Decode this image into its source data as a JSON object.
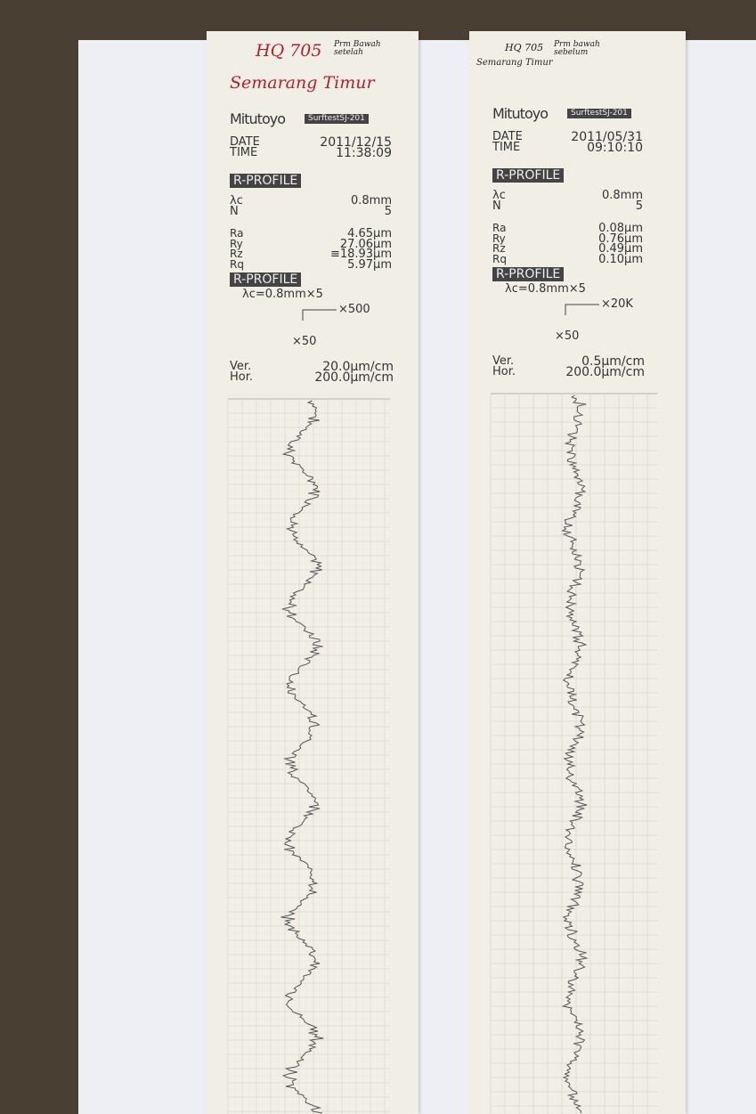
{
  "strips": [
    {
      "handwriting": {
        "title": "HQ 705",
        "note": "Prm Bawah setelah",
        "location": "Semarang Timur"
      },
      "brand": "Mitutoyo",
      "model": "SurftestSJ-201",
      "date_label": "DATE",
      "date": "2011/12/15",
      "time_label": "TIME",
      "time": "11:38:09",
      "section_title": "R-PROFILE",
      "cutoff_label": "λc",
      "cutoff": "0.8mm",
      "n_label": "N",
      "n": "5",
      "params": [
        [
          "Ra",
          "4.65μm"
        ],
        [
          "Ry",
          "27.06μm"
        ],
        [
          "Rz",
          "≡18.93μm"
        ],
        [
          "Rq",
          "5.97μm"
        ]
      ],
      "profile_title": "R-PROFILE",
      "profile_setting": "λc=0.8mm×5",
      "vertical_mag": "×500",
      "horizontal_mag": "×50",
      "scales": [
        [
          "Ver.",
          "20.0μm/cm"
        ],
        [
          "Hor.",
          "200.0μm/cm"
        ]
      ]
    },
    {
      "handwriting": {
        "title": "HQ 705",
        "note": "Prm bawah sebelum",
        "location": "Semarang Timur"
      },
      "brand": "Mitutoyo",
      "model": "SurftestSJ-201",
      "date_label": "DATE",
      "date": "2011/05/31",
      "time_label": "TIME",
      "time": "09:10:10",
      "section_title": "R-PROFILE",
      "cutoff_label": "λc",
      "cutoff": "0.8mm",
      "n_label": "N",
      "n": "5",
      "params": [
        [
          "Ra",
          "0.08μm"
        ],
        [
          "Ry",
          "0.76μm"
        ],
        [
          "Rz",
          "0.49μm"
        ],
        [
          "Rq",
          "0.10μm"
        ]
      ],
      "profile_title": "R-PROFILE",
      "profile_setting": "λc=0.8mm×5",
      "vertical_mag": "×20K",
      "horizontal_mag": "×50",
      "scales": [
        [
          "Ver.",
          "0.5μm/cm"
        ],
        [
          "Hor.",
          "200.0μm/cm"
        ]
      ]
    }
  ]
}
